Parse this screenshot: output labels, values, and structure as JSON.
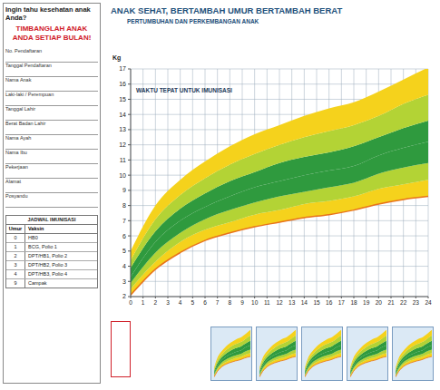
{
  "document": {
    "left_panel": {
      "question": "Ingin tahu kesehatan anak Anda?",
      "call": "TIMBANGLAH ANAK ANDA SETIAP BULAN!",
      "fields": [
        "No. Pendaftaran",
        "Tanggal Pendaftaran",
        "Nama Anak",
        "Laki-laki / Perempuan",
        "Tanggal Lahir",
        "Berat Badan Lahir",
        "Nama Ayah",
        "Nama Ibu",
        "Pekerjaan",
        "Alamat",
        "Posyandu"
      ],
      "immunization": {
        "title": "JADWAL IMUNISASI",
        "header": [
          "Umur",
          "Vaksin"
        ],
        "rows": [
          [
            "0",
            "HB0"
          ],
          [
            "1",
            "BCG, Polio 1"
          ],
          [
            "2",
            "DPT/HB1, Polio 2"
          ],
          [
            "3",
            "DPT/HB2, Polio 3"
          ],
          [
            "4",
            "DPT/HB3, Polio 4"
          ],
          [
            "9",
            "Campak"
          ]
        ]
      }
    },
    "header": {
      "title": "ANAK SEHAT, BERTAMBAH UMUR BERTAMBAH BERAT",
      "subtitle": "PERTUMBUHAN DAN PERKEMBANGAN ANAK"
    }
  },
  "chart_data": {
    "type": "area",
    "annotation": "WAKTU TEPAT UNTUK IMUNISASI",
    "y_label": "Kg",
    "x": [
      0,
      2,
      4,
      6,
      8,
      10,
      12,
      14,
      16,
      18,
      20,
      22,
      24
    ],
    "xlim": [
      0,
      24
    ],
    "xticks": [
      0,
      1,
      2,
      3,
      4,
      5,
      6,
      7,
      8,
      9,
      10,
      11,
      12,
      13,
      14,
      15,
      16,
      17,
      18,
      19,
      20,
      21,
      22,
      23,
      24
    ],
    "ylim": [
      2,
      17
    ],
    "yticks": [
      2,
      3,
      4,
      5,
      6,
      7,
      8,
      9,
      10,
      11,
      12,
      13,
      14,
      15,
      16,
      17
    ],
    "grid": true,
    "series": [
      {
        "color": "#f5d21c",
        "low": [
          2.1,
          3.8,
          4.9,
          5.7,
          6.2,
          6.6,
          6.9,
          7.2,
          7.4,
          7.7,
          8.1,
          8.4,
          8.6
        ],
        "high": [
          2.5,
          4.3,
          5.6,
          6.4,
          6.9,
          7.4,
          7.7,
          8.1,
          8.3,
          8.6,
          9.1,
          9.4,
          9.7
        ]
      },
      {
        "color": "#b3d335",
        "low": [
          2.5,
          4.3,
          5.6,
          6.4,
          6.9,
          7.4,
          7.7,
          8.1,
          8.3,
          8.6,
          9.1,
          9.4,
          9.7
        ],
        "high": [
          2.9,
          4.9,
          6.2,
          7.1,
          7.7,
          8.2,
          8.6,
          8.9,
          9.2,
          9.5,
          10.1,
          10.5,
          10.8
        ]
      },
      {
        "color": "#2f9a3e",
        "low": [
          2.9,
          4.9,
          6.2,
          7.1,
          7.7,
          8.2,
          8.6,
          8.9,
          9.2,
          9.5,
          10.1,
          10.5,
          10.8
        ],
        "high": [
          3.3,
          5.6,
          7.0,
          7.9,
          8.6,
          9.2,
          9.6,
          10.0,
          10.3,
          10.6,
          11.3,
          11.8,
          12.2
        ]
      },
      {
        "color": "#2f9a3e",
        "low": [
          3.3,
          5.6,
          7.0,
          7.9,
          8.6,
          9.2,
          9.6,
          10.0,
          10.3,
          10.6,
          11.3,
          11.8,
          12.2
        ],
        "high": [
          3.9,
          6.3,
          7.8,
          8.8,
          9.6,
          10.2,
          10.8,
          11.2,
          11.5,
          11.9,
          12.5,
          13.1,
          13.6
        ]
      },
      {
        "color": "#b3d335",
        "low": [
          3.9,
          6.3,
          7.8,
          8.8,
          9.6,
          10.2,
          10.8,
          11.2,
          11.5,
          11.9,
          12.5,
          13.1,
          13.6
        ],
        "high": [
          4.4,
          7.1,
          8.7,
          9.8,
          10.7,
          11.4,
          12.0,
          12.5,
          12.9,
          13.3,
          13.9,
          14.7,
          15.3
        ]
      },
      {
        "color": "#f5d21c",
        "low": [
          4.4,
          7.1,
          8.7,
          9.8,
          10.7,
          11.4,
          12.0,
          12.5,
          12.9,
          13.3,
          13.9,
          14.7,
          15.3
        ],
        "high": [
          5.0,
          8.0,
          9.7,
          10.9,
          11.9,
          12.7,
          13.3,
          13.9,
          14.4,
          14.8,
          15.5,
          16.3,
          17.1
        ]
      }
    ]
  }
}
